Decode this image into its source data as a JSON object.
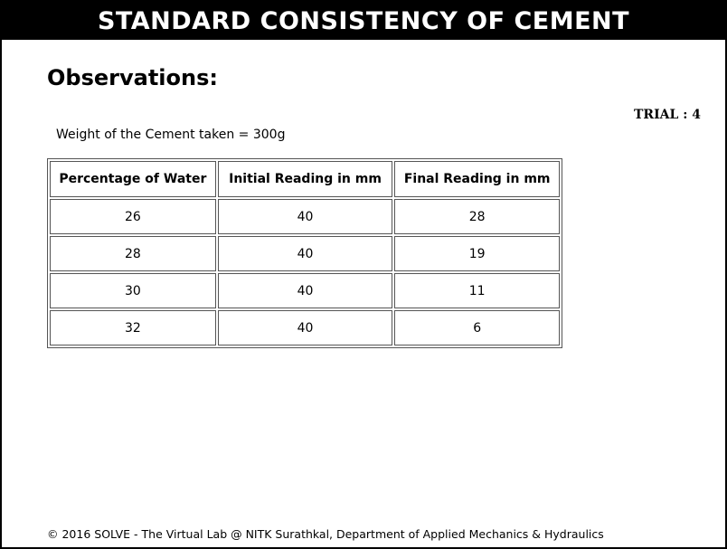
{
  "header": {
    "title": "STANDARD CONSISTENCY OF CEMENT"
  },
  "main": {
    "heading": "Observations:",
    "trial_label": "TRIAL : ",
    "trial_value": "4",
    "weight_text": "Weight of the Cement taken = 300g"
  },
  "table": {
    "headers": [
      "Percentage of Water",
      "Initial Reading in mm",
      "Final Reading in mm"
    ],
    "rows": [
      [
        "26",
        "40",
        "28"
      ],
      [
        "28",
        "40",
        "19"
      ],
      [
        "30",
        "40",
        "11"
      ],
      [
        "32",
        "40",
        "6"
      ]
    ]
  },
  "footer": {
    "text": "© 2016 SOLVE - The Virtual Lab @ NITK Surathkal, Department of Applied Mechanics & Hydraulics"
  }
}
